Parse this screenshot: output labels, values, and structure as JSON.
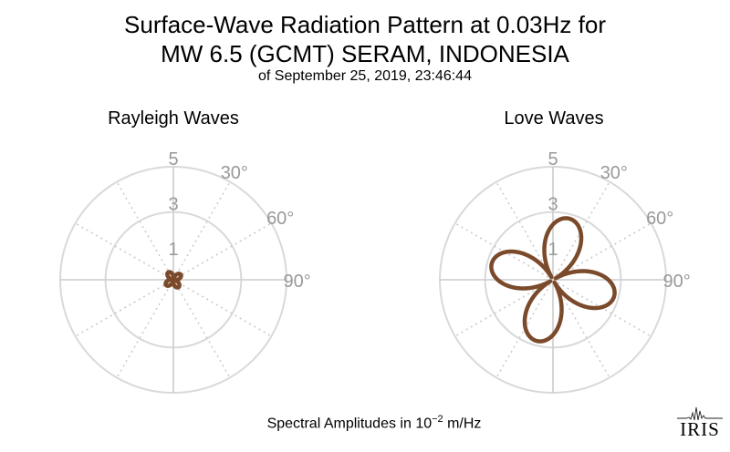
{
  "title": {
    "line1": "Surface-Wave Radiation Pattern at 0.03Hz for",
    "line2": "MW 6.5 (GCMT) SERAM, INDONESIA",
    "line3": "of September 25, 2019, 23:46:44"
  },
  "footer": {
    "prefix": "Spectral Amplitudes in 10",
    "exponent": "−2",
    "suffix": " m/Hz"
  },
  "logo": {
    "text": "IRIS"
  },
  "colors": {
    "pattern": "#7a4a2b",
    "grid_circle": "#d9d9d9",
    "grid_spoke": "#cccccc",
    "tick_label": "#999999"
  },
  "chart_data": [
    {
      "type": "polar",
      "title": "Rayleigh Waves",
      "r_ticks": [
        1,
        3,
        5
      ],
      "r_lim": [
        0,
        5
      ],
      "angle_tick_labels": [
        "30°",
        "60°",
        "90°"
      ],
      "spoke_step_deg": 30,
      "grid": true,
      "series": [
        {
          "lobe_axes_deg": [
            55,
            145
          ],
          "amplitude": 0.4,
          "offset": 0.06
        }
      ]
    },
    {
      "type": "polar",
      "title": "Love Waves",
      "r_ticks": [
        1,
        3,
        5
      ],
      "r_lim": [
        0,
        5
      ],
      "angle_tick_labels": [
        "30°",
        "60°",
        "90°"
      ],
      "spoke_step_deg": 30,
      "grid": true,
      "series": [
        {
          "lobe_axes_deg": [
            15,
            105
          ],
          "amplitude": 2.8,
          "offset": 0.05
        }
      ]
    }
  ]
}
